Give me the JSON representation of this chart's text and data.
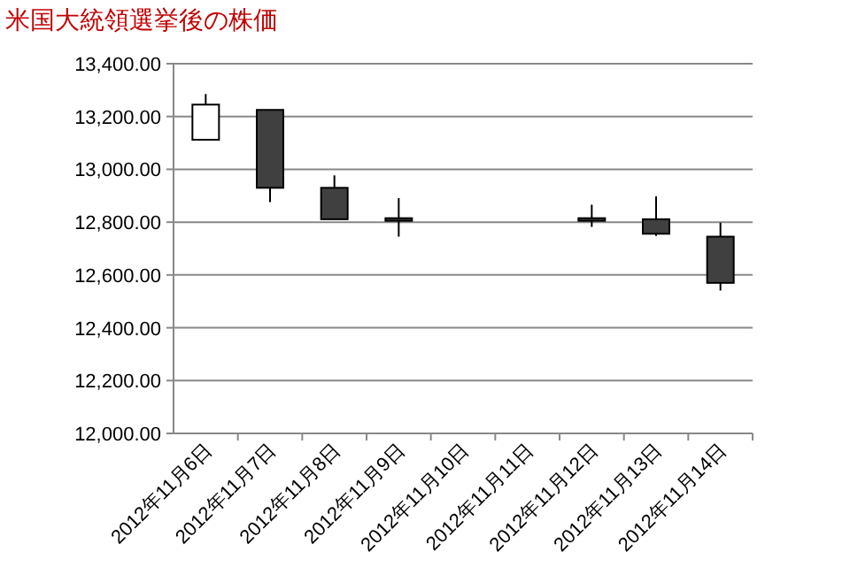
{
  "chart_data": {
    "type": "candlestick",
    "title": "米国大統領選挙後の株価",
    "categories": [
      "2012年11月6日",
      "2012年11月7日",
      "2012年11月8日",
      "2012年11月9日",
      "2012年11月10日",
      "2012年11月11日",
      "2012年11月12日",
      "2012年11月13日",
      "2012年11月14日"
    ],
    "ohlc": [
      [
        13112,
        13285,
        13111,
        13245
      ],
      [
        13225,
        13225,
        12876,
        12930
      ],
      [
        12930,
        12977,
        12811,
        12811
      ],
      [
        12811,
        12891,
        12745,
        12815
      ],
      null,
      null,
      [
        12815,
        12866,
        12782,
        12815
      ],
      [
        12811,
        12898,
        12748,
        12756
      ],
      [
        12745,
        12798,
        12541,
        12570
      ]
    ],
    "colors": [
      "#ffffff",
      "#404040",
      "#404040",
      "#404040",
      null,
      null,
      "#404040",
      "#404040",
      "#404040"
    ],
    "ylim": [
      12000,
      13400
    ],
    "yticks": [
      {
        "value": 12000,
        "label": "12,000.00"
      },
      {
        "value": 12200,
        "label": "12,200.00"
      },
      {
        "value": 12400,
        "label": "12,400.00"
      },
      {
        "value": 12600,
        "label": "12,600.00"
      },
      {
        "value": 12800,
        "label": "12,800.00"
      },
      {
        "value": 13000,
        "label": "13,000.00"
      },
      {
        "value": 13200,
        "label": "13,200.00"
      },
      {
        "value": 13400,
        "label": "13,400.00"
      }
    ],
    "grid": "y"
  }
}
